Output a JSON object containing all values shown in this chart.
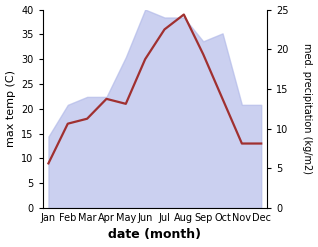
{
  "months": [
    "Jan",
    "Feb",
    "Mar",
    "Apr",
    "May",
    "Jun",
    "Jul",
    "Aug",
    "Sep",
    "Oct",
    "Nov",
    "Dec"
  ],
  "temperature": [
    9,
    17,
    18,
    22,
    21,
    30,
    36,
    39,
    31,
    22,
    13,
    13
  ],
  "precipitation": [
    9,
    13,
    14,
    14,
    19,
    25,
    24,
    24,
    21,
    22,
    13,
    13
  ],
  "temp_color": "#a03030",
  "precip_color": "#b0b8e8",
  "precip_alpha": 0.65,
  "temp_ylim": [
    0,
    40
  ],
  "precip_ylim": [
    0,
    25
  ],
  "xlabel": "date (month)",
  "ylabel_left": "max temp (C)",
  "ylabel_right": "med. precipitation (kg/m2)",
  "label_fontsize": 8,
  "tick_fontsize": 7,
  "line_width": 1.6,
  "background_color": "#ffffff"
}
